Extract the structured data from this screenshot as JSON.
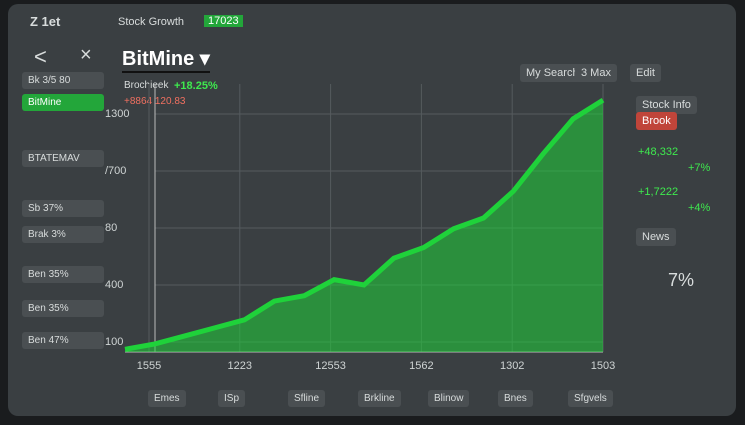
{
  "top_bar": {
    "menu": "Z 1et",
    "title": "Stock Growth",
    "badge": "17023"
  },
  "header": {
    "back": "<",
    "close": "×",
    "ticker": "BitMine ▾",
    "buttons": [
      "My Search",
      "3 Max",
      "Edit"
    ]
  },
  "sidebar": {
    "items": [
      "Bk   3/5 80",
      "BitMine",
      "BTATEMAV",
      "Sb 37%",
      "Brak 3%",
      "Ben 35%",
      "Ben 35%",
      "Ben 47%"
    ]
  },
  "chart_header": {
    "name": "Brochieek",
    "change": "+18.25%",
    "price": "+8864 120.83"
  },
  "chart": {
    "type": "area",
    "y_labels": [
      "1300",
      "/700",
      "80",
      "400",
      "100"
    ],
    "x_labels": [
      "1555",
      "1223",
      "12553",
      "1562",
      "1302",
      "1503"
    ],
    "values": [
      1,
      3,
      6,
      9,
      12,
      19,
      21,
      27,
      25,
      35,
      39,
      46,
      50,
      60,
      74,
      87,
      94
    ],
    "color": "#1fd23a",
    "ylim": [
      0,
      100
    ]
  },
  "right_panel": {
    "items": [
      "Stock Info",
      "Brook",
      "+48,332",
      "+7%",
      "+1,7222",
      "+4%",
      "News",
      "7%"
    ]
  },
  "bottom_bar": {
    "items": [
      "Emes",
      "ISp",
      "Sfline",
      "Brkline",
      "Blinow",
      "Bnes",
      "Sfgvels"
    ]
  }
}
